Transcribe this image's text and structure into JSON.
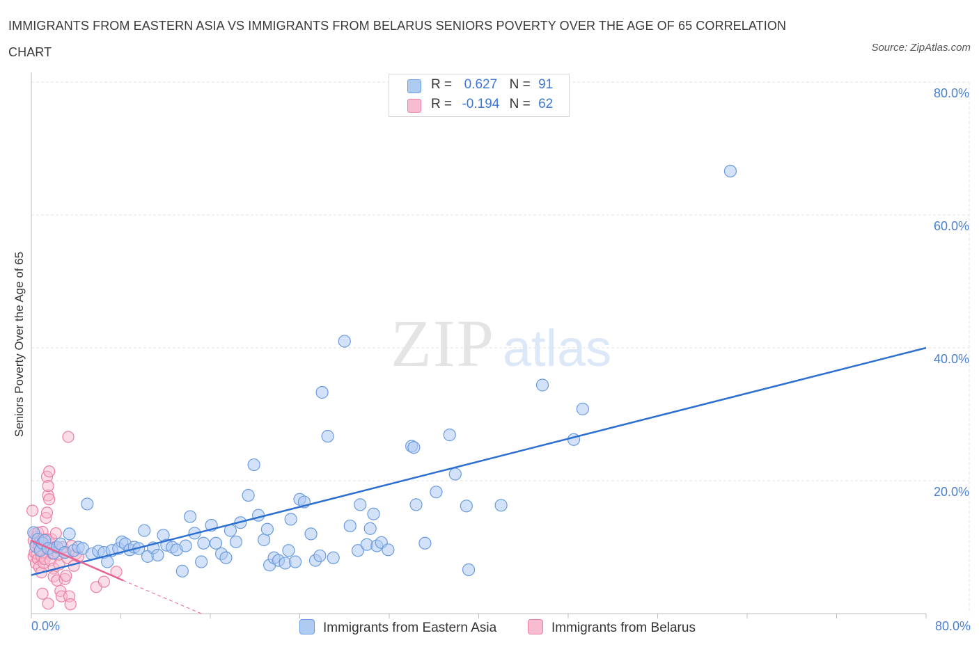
{
  "title": "IMMIGRANTS FROM EASTERN ASIA VS IMMIGRANTS FROM BELARUS SENIORS POVERTY OVER THE AGE OF 65 CORRELATION CHART",
  "source": "Source: ZipAtlas.com",
  "watermark": {
    "zip": "ZIP",
    "atlas": "atlas"
  },
  "legend": {
    "r_label": "R =",
    "n_label": "N =",
    "series1": {
      "r": "0.627",
      "n": "91"
    },
    "series2": {
      "r": "-0.194",
      "n": "62"
    }
  },
  "colors": {
    "series1_fill": "#aecbf2",
    "series1_stroke": "#6a9be0",
    "series1_line": "#2c6fd1",
    "series2_fill": "#f8bcd0",
    "series2_stroke": "#ec7fa3",
    "series2_line": "#e8608e",
    "grid": "#e3e3e3",
    "tick_label": "#4a7fd0"
  },
  "chart_data": {
    "type": "scatter",
    "title": "IMMIGRANTS FROM EASTERN ASIA VS IMMIGRANTS FROM BELARUS SENIORS POVERTY OVER THE AGE OF 65 CORRELATION CHART",
    "xlabel": "",
    "ylabel": "Seniors Poverty Over the Age of 65",
    "xlim": [
      0,
      80
    ],
    "ylim": [
      0,
      80
    ],
    "x_tick_labels": [
      "0.0%",
      "80.0%"
    ],
    "y_ticks": [
      20,
      40,
      60,
      80
    ],
    "y_tick_labels": [
      "20.0%",
      "40.0%",
      "60.0%",
      "80.0%"
    ],
    "grid": true,
    "legend_position": "top-center",
    "series": [
      {
        "name": "Immigrants from Eastern Asia",
        "r": 0.627,
        "n": 91,
        "trend": {
          "x": [
            0,
            80
          ],
          "y": [
            5.8,
            40.0
          ]
        },
        "points": [
          [
            0.2,
            12.2
          ],
          [
            0.4,
            10.1
          ],
          [
            0.6,
            11.2
          ],
          [
            0.8,
            9.5
          ],
          [
            1.0,
            10.6
          ],
          [
            1.2,
            11.0
          ],
          [
            1.5,
            9.8
          ],
          [
            2.0,
            9.1
          ],
          [
            2.3,
            10.0
          ],
          [
            2.6,
            10.5
          ],
          [
            3.0,
            9.2
          ],
          [
            3.4,
            12.0
          ],
          [
            3.8,
            9.5
          ],
          [
            4.2,
            10.0
          ],
          [
            4.6,
            9.8
          ],
          [
            5.0,
            16.5
          ],
          [
            5.4,
            9.0
          ],
          [
            6.0,
            9.4
          ],
          [
            6.5,
            9.2
          ],
          [
            6.8,
            7.8
          ],
          [
            7.2,
            9.5
          ],
          [
            7.8,
            9.8
          ],
          [
            8.1,
            10.8
          ],
          [
            8.4,
            10.5
          ],
          [
            8.8,
            9.6
          ],
          [
            9.2,
            10.0
          ],
          [
            9.6,
            9.8
          ],
          [
            10.1,
            12.5
          ],
          [
            10.4,
            8.6
          ],
          [
            10.9,
            9.9
          ],
          [
            11.3,
            8.8
          ],
          [
            11.8,
            11.8
          ],
          [
            12.1,
            10.3
          ],
          [
            12.6,
            10.0
          ],
          [
            13.0,
            9.6
          ],
          [
            13.5,
            6.4
          ],
          [
            13.8,
            10.2
          ],
          [
            14.2,
            14.6
          ],
          [
            14.6,
            12.1
          ],
          [
            15.2,
            7.8
          ],
          [
            15.4,
            10.6
          ],
          [
            16.1,
            13.3
          ],
          [
            16.5,
            10.6
          ],
          [
            17.0,
            9.0
          ],
          [
            17.4,
            8.4
          ],
          [
            17.8,
            12.5
          ],
          [
            18.3,
            10.8
          ],
          [
            18.7,
            13.7
          ],
          [
            19.4,
            17.8
          ],
          [
            19.9,
            22.4
          ],
          [
            20.3,
            14.8
          ],
          [
            20.8,
            11.1
          ],
          [
            21.1,
            12.7
          ],
          [
            21.3,
            7.3
          ],
          [
            21.7,
            8.4
          ],
          [
            22.1,
            8.0
          ],
          [
            22.7,
            7.6
          ],
          [
            23.0,
            9.5
          ],
          [
            23.2,
            14.2
          ],
          [
            23.6,
            7.8
          ],
          [
            24.0,
            17.2
          ],
          [
            24.4,
            16.8
          ],
          [
            25.0,
            12.0
          ],
          [
            25.4,
            8.0
          ],
          [
            25.8,
            8.7
          ],
          [
            26.0,
            33.3
          ],
          [
            26.5,
            26.7
          ],
          [
            27.0,
            8.4
          ],
          [
            28.0,
            41.0
          ],
          [
            28.5,
            13.2
          ],
          [
            29.2,
            9.5
          ],
          [
            29.4,
            16.4
          ],
          [
            30.0,
            10.4
          ],
          [
            30.3,
            12.8
          ],
          [
            30.6,
            15.0
          ],
          [
            30.9,
            10.2
          ],
          [
            31.3,
            10.7
          ],
          [
            31.9,
            9.6
          ],
          [
            34.0,
            25.2
          ],
          [
            34.2,
            25.0
          ],
          [
            34.4,
            16.4
          ],
          [
            35.2,
            10.6
          ],
          [
            36.2,
            18.3
          ],
          [
            37.4,
            26.9
          ],
          [
            37.9,
            21.0
          ],
          [
            38.9,
            16.2
          ],
          [
            39.1,
            6.6
          ],
          [
            42.0,
            16.3
          ],
          [
            45.7,
            34.4
          ],
          [
            48.5,
            26.2
          ],
          [
            49.3,
            30.8
          ],
          [
            62.5,
            66.6
          ]
        ]
      },
      {
        "name": "Immigrants from Belarus",
        "r": -0.194,
        "n": 62,
        "trend": {
          "x": [
            0,
            8.2
          ],
          "y": [
            11.0,
            5.0
          ]
        },
        "trend_dashed": {
          "x": [
            8.2,
            15.2
          ],
          "y": [
            5.0,
            0.0
          ]
        },
        "points": [
          [
            0.1,
            15.5
          ],
          [
            0.2,
            11.0
          ],
          [
            0.2,
            8.6
          ],
          [
            0.3,
            12.0
          ],
          [
            0.3,
            9.2
          ],
          [
            0.4,
            7.6
          ],
          [
            0.4,
            10.6
          ],
          [
            0.5,
            11.6
          ],
          [
            0.5,
            9.0
          ],
          [
            0.6,
            8.2
          ],
          [
            0.6,
            12.2
          ],
          [
            0.7,
            10.2
          ],
          [
            0.7,
            7.0
          ],
          [
            0.8,
            9.6
          ],
          [
            0.8,
            11.0
          ],
          [
            0.9,
            8.6
          ],
          [
            0.9,
            6.2
          ],
          [
            1.0,
            10.8
          ],
          [
            1.0,
            12.3
          ],
          [
            1.1,
            7.6
          ],
          [
            1.1,
            9.2
          ],
          [
            1.2,
            10.1
          ],
          [
            1.2,
            8.2
          ],
          [
            1.3,
            11.2
          ],
          [
            1.3,
            14.4
          ],
          [
            1.4,
            15.2
          ],
          [
            1.4,
            20.6
          ],
          [
            1.5,
            17.8
          ],
          [
            1.5,
            19.2
          ],
          [
            1.6,
            17.2
          ],
          [
            1.6,
            21.4
          ],
          [
            1.7,
            9.8
          ],
          [
            1.7,
            8.0
          ],
          [
            1.8,
            10.4
          ],
          [
            1.8,
            11.2
          ],
          [
            1.9,
            9.0
          ],
          [
            2.0,
            6.8
          ],
          [
            2.0,
            5.6
          ],
          [
            2.1,
            10.0
          ],
          [
            2.2,
            12.1
          ],
          [
            2.3,
            5.0
          ],
          [
            2.4,
            8.8
          ],
          [
            2.5,
            7.4
          ],
          [
            2.6,
            3.4
          ],
          [
            2.7,
            2.6
          ],
          [
            2.8,
            10.0
          ],
          [
            2.9,
            9.2
          ],
          [
            3.0,
            5.2
          ],
          [
            3.1,
            5.7
          ],
          [
            3.2,
            8.4
          ],
          [
            3.3,
            26.6
          ],
          [
            3.4,
            2.6
          ],
          [
            3.5,
            1.4
          ],
          [
            3.6,
            10.2
          ],
          [
            3.8,
            7.2
          ],
          [
            4.0,
            9.0
          ],
          [
            4.2,
            8.6
          ],
          [
            1.0,
            3.0
          ],
          [
            1.5,
            1.5
          ],
          [
            5.8,
            4.0
          ],
          [
            7.6,
            6.3
          ],
          [
            6.5,
            4.8
          ]
        ]
      }
    ]
  }
}
